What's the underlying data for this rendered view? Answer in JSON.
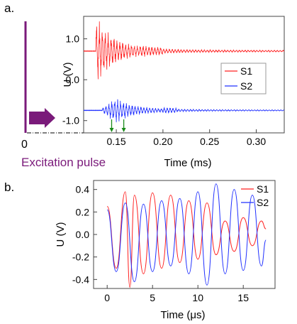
{
  "panel_a": {
    "label": "a.",
    "excitation_label": "Excitation pulse",
    "pulse_tick": "0",
    "colors": {
      "pulse": "#7a1a7a",
      "s1": "#ff2020",
      "s2": "#2030ff",
      "arrow": "#1a8a1a"
    }
  },
  "panel_b": {
    "label": "b."
  },
  "chart_data": [
    {
      "type": "line",
      "title": "",
      "xlabel": "Time (ms)",
      "ylabel": "U (V)",
      "xlim": [
        0.115,
        0.33
      ],
      "ylim": [
        -1.3,
        1.55
      ],
      "xticks": [
        "0.15",
        "0.20",
        "0.25",
        "0.30"
      ],
      "yticks": [
        "1.0",
        "0.0",
        "-1.0"
      ],
      "grid": false,
      "legend": "right",
      "series": [
        {
          "name": "S1",
          "color": "#ff2020",
          "offset": 0.7,
          "onset": 0.128,
          "peak_amplitude": 0.8,
          "decay_to": 0.3
        },
        {
          "name": "S2",
          "color": "#2030ff",
          "offset": -0.75,
          "onset": 0.135,
          "peak_amplitude": 0.28,
          "peak_time": 0.15,
          "decay_to": 0.19
        }
      ],
      "annotations": {
        "arrival_markers_ms": [
          0.145,
          0.158
        ]
      }
    },
    {
      "type": "line",
      "title": "",
      "xlabel": "Time (μs)",
      "ylabel": "U (V)",
      "xlim": [
        -1.5,
        18.5
      ],
      "ylim": [
        -0.48,
        0.48
      ],
      "xticks": [
        "0",
        "5",
        "10",
        "15"
      ],
      "yticks": [
        "0.4",
        "0.2",
        "0.0",
        "-0.2",
        "-0.4"
      ],
      "grid": false,
      "legend": "top-right",
      "series": [
        {
          "name": "S1",
          "color": "#ff2020",
          "x": [
            0,
            1,
            2,
            2.5,
            3,
            4,
            5,
            6,
            7,
            8,
            9,
            10,
            11,
            12,
            13,
            14,
            15,
            16,
            17,
            17.5
          ],
          "y": [
            0.25,
            -0.3,
            0.38,
            -0.47,
            0.35,
            -0.35,
            0.37,
            -0.3,
            0.35,
            -0.25,
            0.3,
            -0.22,
            0.28,
            -0.18,
            0.12,
            -0.15,
            0.15,
            -0.1,
            0.12,
            0.05
          ]
        },
        {
          "name": "S2",
          "color": "#2030ff",
          "x": [
            0,
            1,
            2,
            3,
            4,
            5,
            6,
            7,
            8,
            9,
            10,
            11,
            12,
            13,
            14,
            15,
            16,
            17,
            17.5
          ],
          "y": [
            0.22,
            -0.33,
            0.28,
            -0.42,
            0.27,
            -0.33,
            0.3,
            -0.28,
            0.32,
            -0.35,
            0.38,
            -0.45,
            0.45,
            -0.35,
            0.4,
            -0.32,
            0.35,
            -0.28,
            -0.05
          ]
        }
      ]
    }
  ]
}
